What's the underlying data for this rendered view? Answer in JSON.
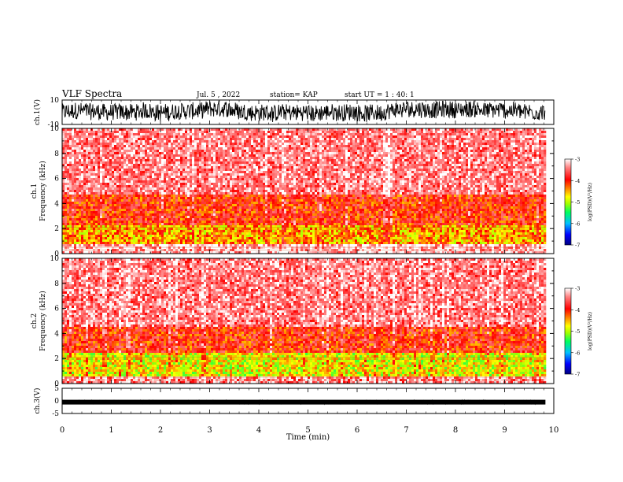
{
  "header": {
    "title": "VLF Spectra",
    "date": "Jul. 5 , 2022",
    "station": "station= KAP",
    "start": "start UT = 1 : 40: 1"
  },
  "colors": {
    "colorbar": [
      "#000080",
      "#0000ff",
      "#00c0ff",
      "#00ff60",
      "#a0ff00",
      "#ffff00",
      "#ff8000",
      "#ff0000",
      "#ff8080",
      "#ffffff"
    ],
    "waveform": "#000000"
  },
  "chart_data": [
    {
      "type": "line",
      "name": "ch1-waveform",
      "ylabel": "ch.1(V)",
      "ylim": [
        -10,
        10
      ],
      "yticks": [
        "10",
        "-10"
      ],
      "x_range_min": [
        0,
        9.83
      ],
      "description_level": "dense noisy waveform spanning roughly -8 to +8 V"
    },
    {
      "type": "heatmap",
      "name": "ch1-spectrogram",
      "ylabel": "ch.1\nFrequency (kHz)",
      "ylim": [
        0,
        10
      ],
      "yticks": [
        "0",
        "2",
        "4",
        "6",
        "8",
        "10"
      ],
      "colorbar": {
        "label": "log(PSD)(V²/Hz)",
        "range": [
          -7,
          -3
        ],
        "ticks": [
          "-3",
          "-4",
          "-5",
          "-6",
          "-7"
        ]
      },
      "bands": [
        {
          "freq_range_khz": [
            0,
            0.8
          ],
          "level": -3.2
        },
        {
          "freq_range_khz": [
            0.8,
            2.3
          ],
          "level": -4.5
        },
        {
          "freq_range_khz": [
            2.3,
            4.8
          ],
          "level": -4.0
        },
        {
          "freq_range_khz": [
            4.8,
            10
          ],
          "level": -3.5
        }
      ]
    },
    {
      "type": "heatmap",
      "name": "ch2-spectrogram",
      "ylabel": "ch.2\nFrequency (kHz)",
      "ylim": [
        0,
        10
      ],
      "yticks": [
        "0",
        "2",
        "4",
        "6",
        "8",
        "10"
      ],
      "colorbar": {
        "label": "log(PSD)(V²/Hz)",
        "range": [
          -7,
          -3
        ],
        "ticks": [
          "-3",
          "-4",
          "-5",
          "-6",
          "-7"
        ]
      },
      "bands": [
        {
          "freq_range_khz": [
            0,
            0.5
          ],
          "level": -3.4
        },
        {
          "freq_range_khz": [
            0.5,
            2.5
          ],
          "level": -4.8
        },
        {
          "freq_range_khz": [
            2.5,
            4.5
          ],
          "level": -4.0
        },
        {
          "freq_range_khz": [
            4.5,
            10
          ],
          "level": -3.5
        }
      ]
    },
    {
      "type": "line",
      "name": "ch3-waveform",
      "ylabel": "ch.3(V)",
      "ylim": [
        -5,
        5
      ],
      "yticks": [
        "5",
        "0",
        "-5"
      ],
      "baseline_v": -0.5
    }
  ],
  "xaxis": {
    "label": "Time (min)",
    "ticks": [
      "0",
      "1",
      "2",
      "3",
      "4",
      "5",
      "6",
      "7",
      "8",
      "9",
      "10"
    ],
    "range": [
      0,
      10
    ],
    "data_end": 9.83
  }
}
